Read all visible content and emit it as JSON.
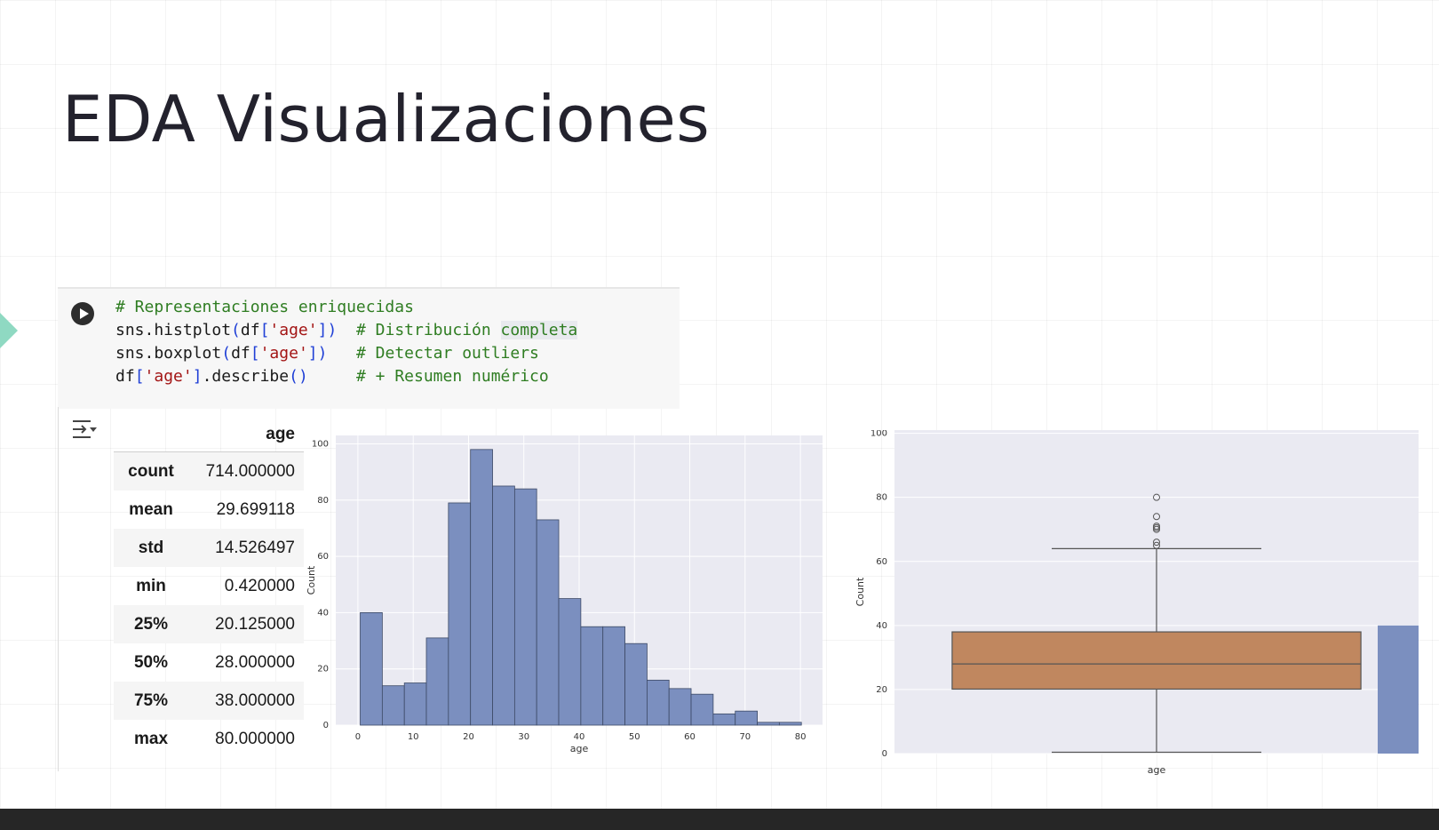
{
  "slide": {
    "title": "EDA Visualizaciones"
  },
  "code_cell": {
    "lines": [
      [
        {
          "t": "# Representaciones enriquecidas",
          "c": "cm"
        }
      ],
      [
        {
          "t": "sns.histplot",
          "c": ""
        },
        {
          "t": "(",
          "c": "br"
        },
        {
          "t": "df",
          "c": ""
        },
        {
          "t": "[",
          "c": "br"
        },
        {
          "t": "'age'",
          "c": "str"
        },
        {
          "t": "])",
          "c": "br"
        },
        {
          "t": "  ",
          "c": ""
        },
        {
          "t": "# Distribución ",
          "c": "cm"
        },
        {
          "t": "completa",
          "c": "cm hl"
        }
      ],
      [
        {
          "t": "sns.boxplot",
          "c": ""
        },
        {
          "t": "(",
          "c": "br"
        },
        {
          "t": "df",
          "c": ""
        },
        {
          "t": "[",
          "c": "br"
        },
        {
          "t": "'age'",
          "c": "str"
        },
        {
          "t": "])",
          "c": "br"
        },
        {
          "t": "   ",
          "c": ""
        },
        {
          "t": "# Detectar outliers",
          "c": "cm"
        }
      ],
      [
        {
          "t": "df",
          "c": ""
        },
        {
          "t": "[",
          "c": "br"
        },
        {
          "t": "'age'",
          "c": "str"
        },
        {
          "t": "]",
          "c": "br"
        },
        {
          "t": ".describe",
          "c": ""
        },
        {
          "t": "()",
          "c": "br"
        },
        {
          "t": "     ",
          "c": ""
        },
        {
          "t": "# + Resumen numérico",
          "c": "cm"
        }
      ]
    ]
  },
  "describe_table": {
    "column": "age",
    "rows": [
      {
        "stat": "count",
        "value": "714.000000"
      },
      {
        "stat": "mean",
        "value": "29.699118"
      },
      {
        "stat": "std",
        "value": "14.526497"
      },
      {
        "stat": "min",
        "value": "0.420000"
      },
      {
        "stat": "25%",
        "value": "20.125000"
      },
      {
        "stat": "50%",
        "value": "28.000000"
      },
      {
        "stat": "75%",
        "value": "38.000000"
      },
      {
        "stat": "max",
        "value": "80.000000"
      }
    ]
  },
  "chart_data": [
    {
      "type": "bar",
      "kind": "histogram",
      "xlabel": "age",
      "ylabel": "Count",
      "xlim": [
        -4,
        84
      ],
      "ylim": [
        0,
        103
      ],
      "xticks": [
        0,
        10,
        20,
        30,
        40,
        50,
        60,
        70,
        80
      ],
      "yticks": [
        0,
        20,
        40,
        60,
        80,
        100
      ],
      "grid": true,
      "bin_edges": [
        0.42,
        4.41,
        8.4,
        12.38,
        16.37,
        20.36,
        24.35,
        28.34,
        32.32,
        36.31,
        40.3,
        44.29,
        48.28,
        52.27,
        56.25,
        60.24,
        64.23,
        68.22,
        72.21,
        76.19,
        80.18
      ],
      "values": [
        40,
        14,
        15,
        31,
        79,
        98,
        85,
        84,
        73,
        45,
        35,
        35,
        29,
        16,
        13,
        11,
        4,
        5,
        1,
        1
      ],
      "color": "#7b8fbf",
      "edge_color": "#3d4a66"
    },
    {
      "type": "box",
      "xlabel": "age",
      "ylabel": "Count",
      "ylim": [
        0,
        101
      ],
      "yticks": [
        0,
        20,
        40,
        60,
        80,
        100
      ],
      "grid": true,
      "box": {
        "whisker_low": 0.42,
        "q1": 20.125,
        "median": 28.0,
        "q3": 38.0,
        "whisker_high": 64
      },
      "outliers": [
        65,
        66,
        70,
        70.5,
        71,
        74,
        80
      ],
      "partial_bar": {
        "value": 40
      },
      "box_color": "#c0875f",
      "bar_color": "#7b8fbf"
    }
  ]
}
